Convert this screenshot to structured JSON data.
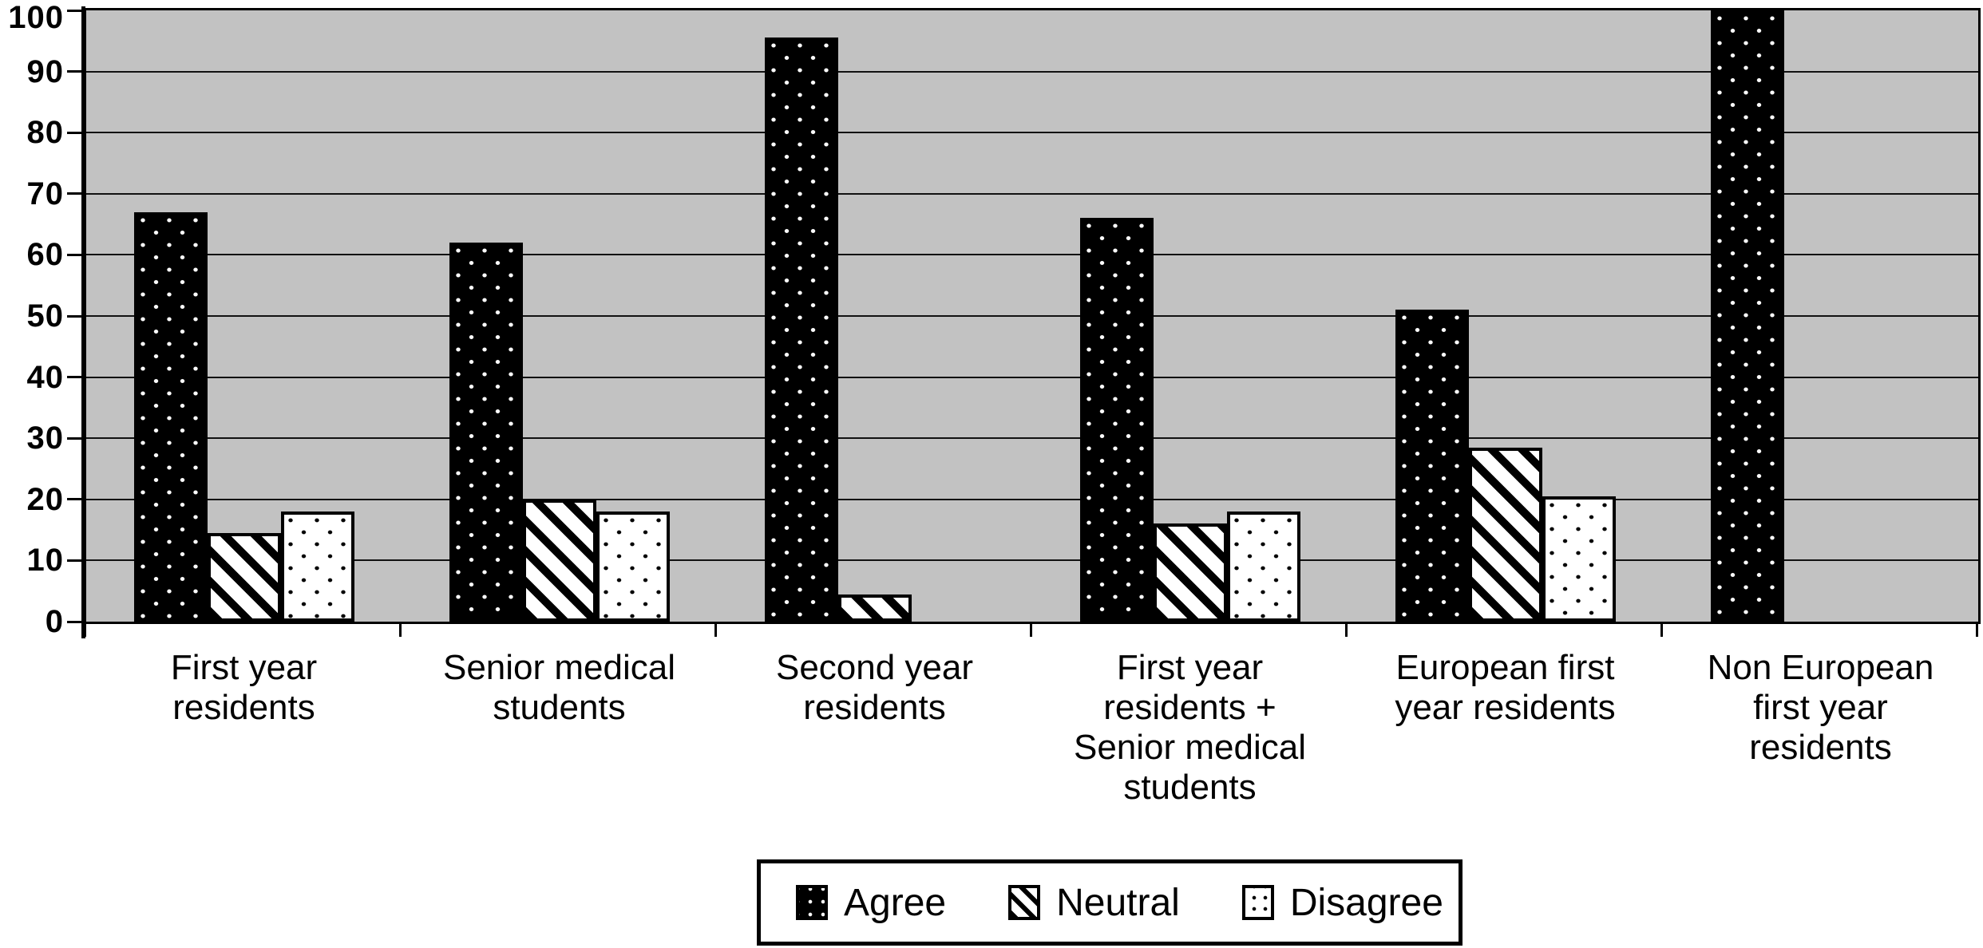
{
  "figure": {
    "background": "#ffffff"
  },
  "chart_data": {
    "type": "bar",
    "title": "",
    "xlabel": "",
    "ylabel": "",
    "categories": [
      "First year residents",
      "Senior medical students",
      "Second year residents",
      "First year residents + Senior medical students",
      "European first year residents",
      "Non European first year residents"
    ],
    "category_label_lines": [
      [
        "First year",
        "residents"
      ],
      [
        "Senior medical",
        "students"
      ],
      [
        "Second year",
        "residents"
      ],
      [
        "First year",
        "residents +",
        "Senior medical",
        "students"
      ],
      [
        "European first",
        "year residents"
      ],
      [
        "Non European",
        "first year",
        "residents"
      ]
    ],
    "series": [
      {
        "name": "Agree",
        "pattern": "black-with-white-dots",
        "values": [
          67,
          62,
          95.5,
          66,
          51,
          100
        ]
      },
      {
        "name": "Neutral",
        "pattern": "black-white-diagonal-stripes",
        "values": [
          14.5,
          20,
          4.5,
          16,
          28.5,
          0
        ]
      },
      {
        "name": "Disagree",
        "pattern": "white-with-black-dots",
        "values": [
          18,
          18,
          0,
          18,
          20.5,
          0
        ]
      }
    ],
    "ylim": [
      0,
      100
    ],
    "yticks": [
      0,
      10,
      20,
      30,
      40,
      50,
      60,
      70,
      80,
      90,
      100
    ],
    "grid": "horizontal",
    "legend_position": "bottom-center",
    "legend_labels": [
      "Agree",
      "Neutral",
      "Disagree"
    ],
    "plot_background": "#c2c2c2",
    "bar_outline": "#000000"
  }
}
